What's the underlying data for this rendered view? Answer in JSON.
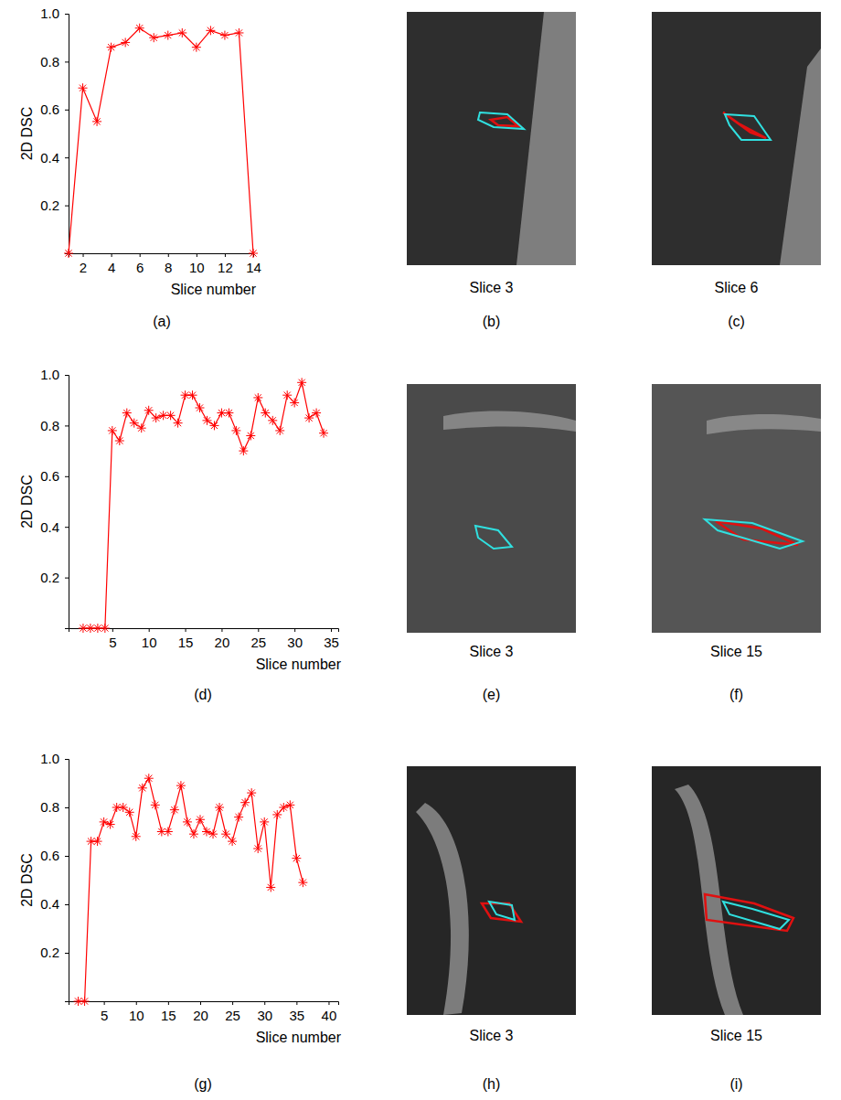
{
  "chart_data": [
    {
      "type": "line",
      "caption": "(a)",
      "xlabel": "Slice number",
      "ylabel": "2D DSC",
      "x": [
        1,
        2,
        3,
        4,
        5,
        6,
        7,
        8,
        9,
        10,
        11,
        12,
        13,
        14
      ],
      "series": [
        {
          "color": "#ff0000",
          "marker": "asterisk",
          "line_style": "solid",
          "values": [
            0,
            0.69,
            0.55,
            0.86,
            0.88,
            0.94,
            0.9,
            0.91,
            0.92,
            0.86,
            0.93,
            0.91,
            0.92,
            0
          ]
        }
      ],
      "xlim": [
        1,
        14
      ],
      "xticks": [
        2,
        4,
        6,
        8,
        10,
        12,
        14
      ],
      "ylim": [
        0,
        1
      ],
      "yticks": [
        0.2,
        0.4,
        0.6,
        0.8,
        {
          "value": 1,
          "label": "1.0"
        }
      ],
      "grid": false
    },
    {
      "type": "line",
      "caption": "(d)",
      "xlabel": "Slice number",
      "ylabel": "2D DSC",
      "x": [
        1,
        2,
        3,
        4,
        5,
        6,
        7,
        8,
        9,
        10,
        11,
        12,
        13,
        14,
        15,
        16,
        17,
        18,
        19,
        20,
        21,
        22,
        23,
        24,
        25,
        26,
        27,
        28,
        29,
        30,
        31,
        32,
        33,
        34
      ],
      "series": [
        {
          "color": "#ff0000",
          "marker": "asterisk",
          "line_style": "solid",
          "values": [
            0,
            0,
            0,
            0,
            0.78,
            0.74,
            0.85,
            0.81,
            0.79,
            0.86,
            0.83,
            0.84,
            0.84,
            0.81,
            0.92,
            0.92,
            0.87,
            0.82,
            0.8,
            0.85,
            0.85,
            0.78,
            0.7,
            0.76,
            0.91,
            0.85,
            0.82,
            0.78,
            0.92,
            0.89,
            0.97,
            0.83,
            0.85,
            0.77
          ]
        }
      ],
      "xlim": [
        -1,
        36
      ],
      "xticks": [
        5,
        10,
        15,
        20,
        25,
        30,
        35
      ],
      "ylim": [
        0,
        1
      ],
      "yticks": [
        0.2,
        0.4,
        0.6,
        0.8,
        {
          "value": 1,
          "label": "1.0"
        }
      ],
      "grid": false
    },
    {
      "type": "line",
      "caption": "(g)",
      "xlabel": "Slice number",
      "ylabel": "2D DSC",
      "x": [
        1,
        2,
        3,
        4,
        5,
        6,
        7,
        8,
        9,
        10,
        11,
        12,
        13,
        14,
        15,
        16,
        17,
        18,
        19,
        20,
        21,
        22,
        23,
        24,
        25,
        26,
        27,
        28,
        29,
        30,
        31,
        32,
        33,
        34,
        35,
        36
      ],
      "series": [
        {
          "color": "#ff0000",
          "marker": "asterisk",
          "line_style": "solid",
          "values": [
            0,
            0,
            0.66,
            0.66,
            0.74,
            0.73,
            0.8,
            0.8,
            0.78,
            0.68,
            0.88,
            0.92,
            0.81,
            0.7,
            0.7,
            0.79,
            0.89,
            0.74,
            0.69,
            0.75,
            0.7,
            0.69,
            0.8,
            0.69,
            0.66,
            0.76,
            0.82,
            0.86,
            0.63,
            0.74,
            0.47,
            0.77,
            0.8,
            0.81,
            0.59,
            0.49
          ]
        }
      ],
      "xlim": [
        -0.5,
        41.5
      ],
      "xticks": [
        5,
        10,
        15,
        20,
        25,
        30,
        35,
        40
      ],
      "ylim": [
        0,
        1
      ],
      "yticks": [
        0.2,
        0.4,
        0.6,
        0.8,
        {
          "value": 1,
          "label": "1.0"
        }
      ],
      "grid": false
    }
  ],
  "images": [
    {
      "label": "(b)",
      "caption": "Slice 3"
    },
    {
      "label": "(c)",
      "caption": "Slice 6"
    },
    {
      "label": "(e)",
      "caption": "Slice 3"
    },
    {
      "label": "(f)",
      "caption": "Slice 15"
    },
    {
      "label": "(h)",
      "caption": "Slice 3"
    },
    {
      "label": "(i)",
      "caption": "Slice 15"
    }
  ]
}
